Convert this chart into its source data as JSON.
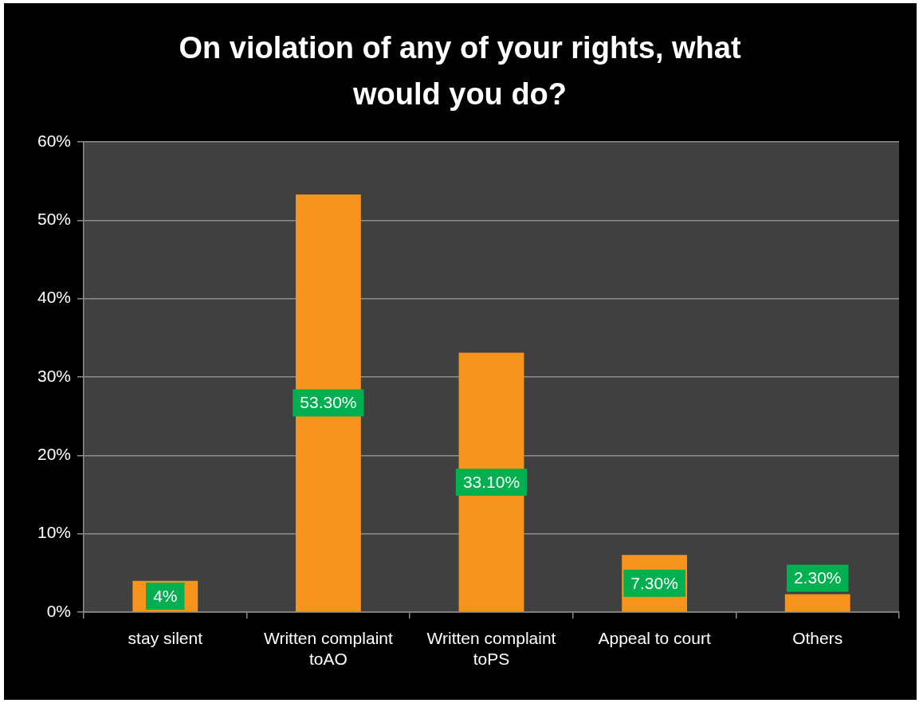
{
  "chart_data": {
    "type": "bar",
    "title": "On violation of any of your rights, what would you do?",
    "categories": [
      "stay silent",
      "Written complaint toAO",
      "Written complaint toPS",
      "Appeal to court",
      "Others"
    ],
    "values": [
      4,
      53.3,
      33.1,
      7.3,
      2.3
    ],
    "color": "#f7941d",
    "value_labels": [
      "4%",
      "53.30%",
      "33.10%",
      "7.30%",
      "2.30%"
    ],
    "ylim": [
      0,
      60
    ],
    "yticks": [
      {
        "value": 0,
        "label": "0%"
      },
      {
        "value": 10,
        "label": "10%"
      },
      {
        "value": 20,
        "label": "20%"
      },
      {
        "value": 30,
        "label": "30%"
      },
      {
        "value": 40,
        "label": "40%"
      },
      {
        "value": 50,
        "label": "50%"
      },
      {
        "value": 60,
        "label": "60%"
      }
    ],
    "grid": "y",
    "legend": false
  }
}
